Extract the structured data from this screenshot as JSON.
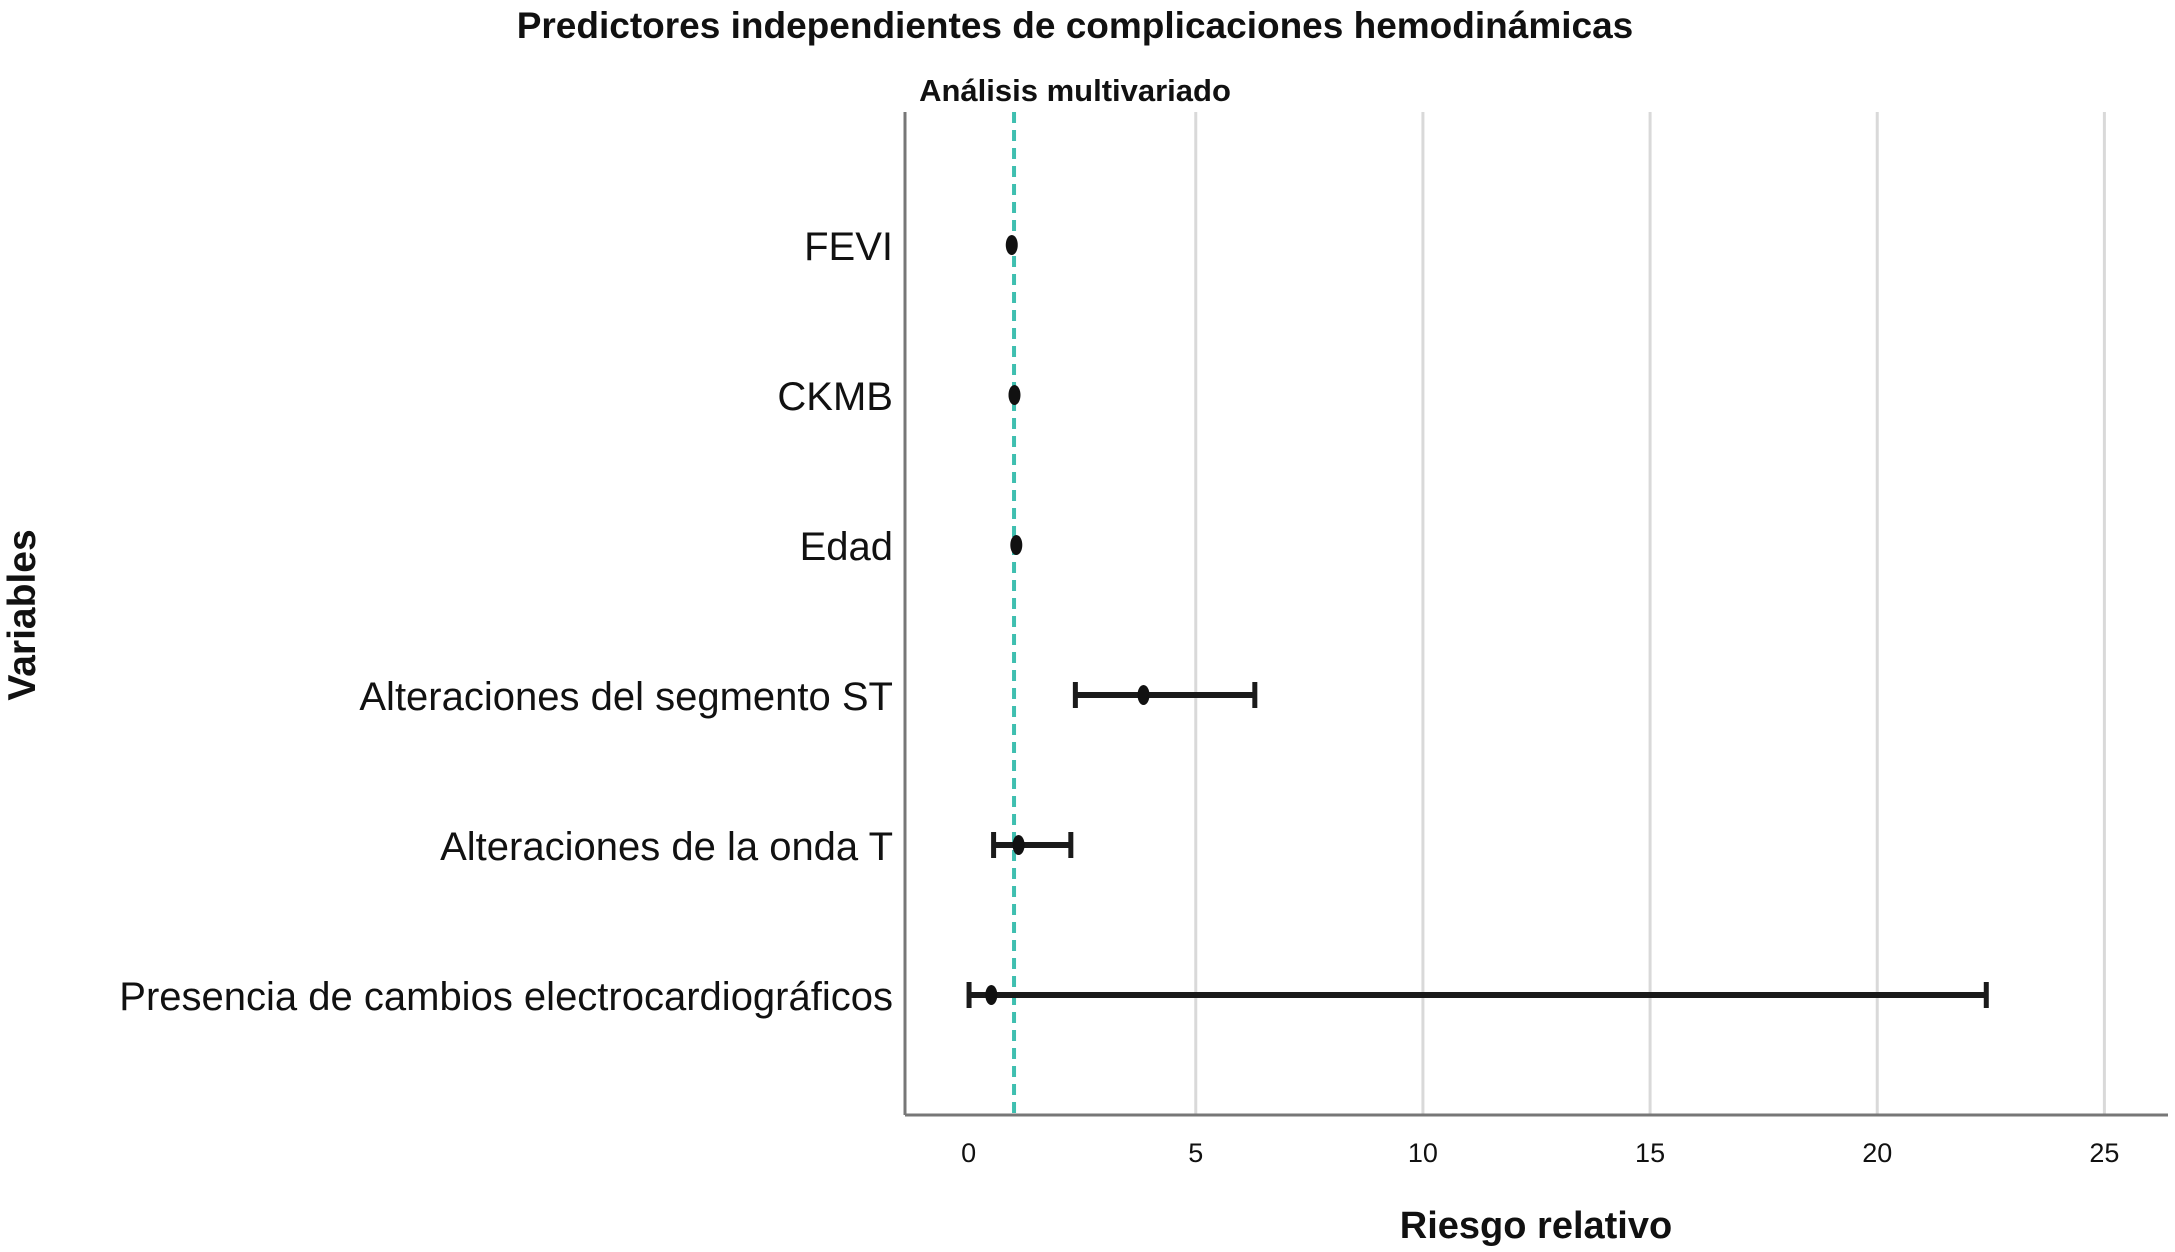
{
  "chart_data": {
    "type": "forest",
    "title": "Predictores independientes de complicaciones hemodinámicas",
    "subtitle": "Análisis multivariado",
    "xlabel": "Riesgo relativo",
    "ylabel": "Variables",
    "xlim": [
      -1.4,
      26.4
    ],
    "xticks": [
      0,
      5,
      10,
      15,
      20,
      25
    ],
    "xtick_labels": [
      "0",
      "5",
      "10",
      "15",
      "20",
      "25"
    ],
    "reference_line": 1,
    "reference_color": "#3fbfb0",
    "grid": "vertical",
    "rows": [
      {
        "label": "FEVI",
        "estimate": 0.95,
        "lower": 0.93,
        "upper": 0.97
      },
      {
        "label": "CKMB",
        "estimate": 1.01,
        "lower": 1.0,
        "upper": 1.02
      },
      {
        "label": "Edad",
        "estimate": 1.05,
        "lower": 1.02,
        "upper": 1.09
      },
      {
        "label": "Alteraciones del segmento ST",
        "estimate": 3.85,
        "lower": 2.35,
        "upper": 6.3
      },
      {
        "label": "Alteraciones de la onda T",
        "estimate": 1.1,
        "lower": 0.55,
        "upper": 2.25
      },
      {
        "label": "Presencia de cambios electrocardiográficos",
        "estimate": 0.5,
        "lower": 0.01,
        "upper": 22.4
      }
    ]
  }
}
